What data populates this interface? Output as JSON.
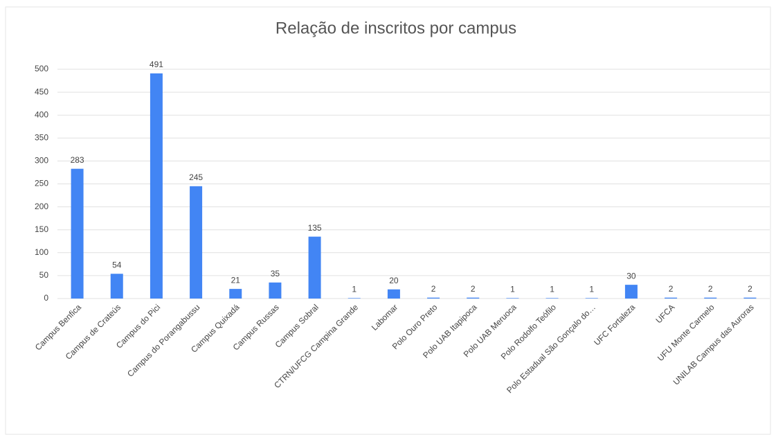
{
  "chart_data": {
    "type": "bar",
    "title": "Relação de inscritos por campus",
    "categories": [
      "Campus Benfica",
      "Campus de Crateús",
      "Campus do Pici",
      "Campus do Porangabussu",
      "Campus Quixadá",
      "Campus Russas",
      "Campus Sobral",
      "CTRN/UFCG Campina Grande",
      "Labomar",
      "Polo Ouro Preto",
      "Polo UAB Itapipoca",
      "Polo UAB Meruoca",
      "Polo Rodolfo Teófilo",
      "Polo Estadual São Gonçalo do…",
      "UFC Fortaleza",
      "UFCA",
      "UFU Monte Carmelo",
      "UNILAB Campus das Auroras"
    ],
    "values": [
      283,
      54,
      491,
      245,
      21,
      35,
      135,
      1,
      20,
      2,
      2,
      1,
      1,
      1,
      30,
      2,
      2,
      2
    ],
    "color": "#4285f4",
    "ylim": [
      0,
      500
    ],
    "yticks": [
      0,
      50,
      100,
      150,
      200,
      250,
      300,
      350,
      400,
      450,
      500
    ],
    "grid": true
  }
}
